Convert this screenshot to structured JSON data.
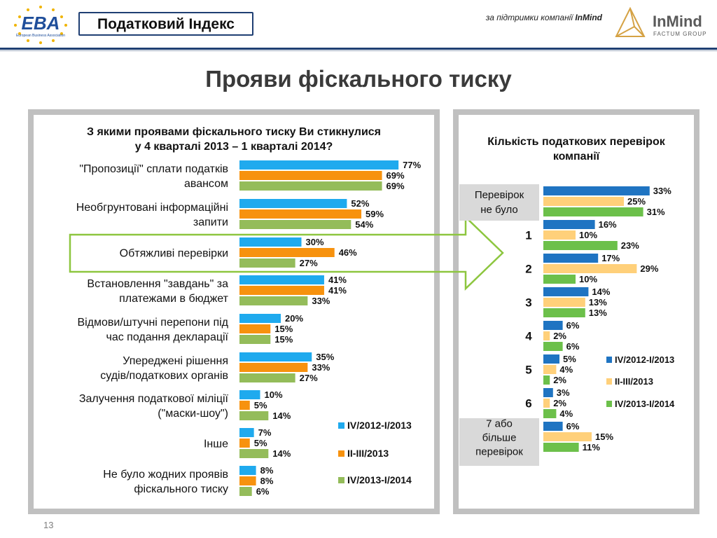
{
  "header": {
    "logo_text": "EBA",
    "logo_subtext": "European Business Association",
    "index_title": "Податковий Індекс",
    "support_prefix": "за підтримки компанії ",
    "support_company": "InMind",
    "partner_logo_text": "InMind",
    "partner_logo_subtext": "FACTUM GROUP"
  },
  "page_title": "Прояви фіскального тиску",
  "page_number": "13",
  "colors": {
    "series1": "#1faaee",
    "series2": "#f7920e",
    "series3": "#94bc5a",
    "right_series1": "#1f74c2",
    "right_series2": "#ffd07a",
    "right_series3": "#6cc04a",
    "highlight_frame": "#8dc63f",
    "panel_border": "#c0c0c0"
  },
  "chart_data": [
    {
      "type": "bar",
      "orientation": "horizontal",
      "title": "З якими проявами фіскального тиску Ви стикнулися у 4 кварталі 2013 – 1 кварталі 2014?",
      "title_lines": [
        "З якими проявами фіскального тиску Ви стикнулися",
        "у 4 кварталі 2013 – 1 кварталі 2014?"
      ],
      "categories": [
        [
          "\"Пропозиції\" сплати податків",
          "авансом"
        ],
        [
          "Необгрунтовані інформаційні",
          "запити"
        ],
        [
          "Обтяжливі перевірки"
        ],
        [
          "Встановлення \"завдань\" за",
          "платежами в бюджет"
        ],
        [
          "Відмови/штучні перепони під",
          "час подання декларації"
        ],
        [
          "Упереджені рішення",
          "судів/податкових органів"
        ],
        [
          "Залучення податкової міліції",
          "(\"маски-шоу\")"
        ],
        [
          "Інше"
        ],
        [
          "Не було жодних проявів",
          "фіскального тиску"
        ]
      ],
      "series": [
        {
          "name": "IV/2012-I/2013",
          "values": [
            77,
            52,
            30,
            41,
            20,
            35,
            10,
            7,
            8
          ]
        },
        {
          "name": "II-III/2013",
          "values": [
            69,
            59,
            46,
            41,
            15,
            33,
            5,
            5,
            8
          ]
        },
        {
          "name": "IV/2013-I/2014",
          "values": [
            69,
            54,
            27,
            33,
            15,
            27,
            14,
            14,
            6
          ]
        }
      ],
      "unit": "%",
      "highlighted_category": "Обтяжливі перевірки",
      "legend_position": "bottom-right"
    },
    {
      "type": "bar",
      "orientation": "horizontal",
      "title": "Кількість податкових перевірок компанії",
      "title_lines": [
        "Кількість податкових перевірок",
        "компанії"
      ],
      "categories": [
        [
          "Перевірок",
          "не було"
        ],
        [
          "1"
        ],
        [
          "2"
        ],
        [
          "3"
        ],
        [
          "4"
        ],
        [
          "5"
        ],
        [
          "6"
        ],
        [
          "7 або",
          "більше",
          "перевірок"
        ]
      ],
      "series": [
        {
          "name": "IV/2012-I/2013",
          "values": [
            33,
            16,
            17,
            14,
            6,
            5,
            3,
            6
          ]
        },
        {
          "name": "II-III/2013",
          "values": [
            25,
            10,
            29,
            13,
            2,
            4,
            2,
            15
          ]
        },
        {
          "name": "IV/2013-I/2014",
          "values": [
            31,
            23,
            10,
            13,
            6,
            2,
            4,
            11
          ]
        }
      ],
      "unit": "%",
      "legend_position": "right"
    }
  ]
}
